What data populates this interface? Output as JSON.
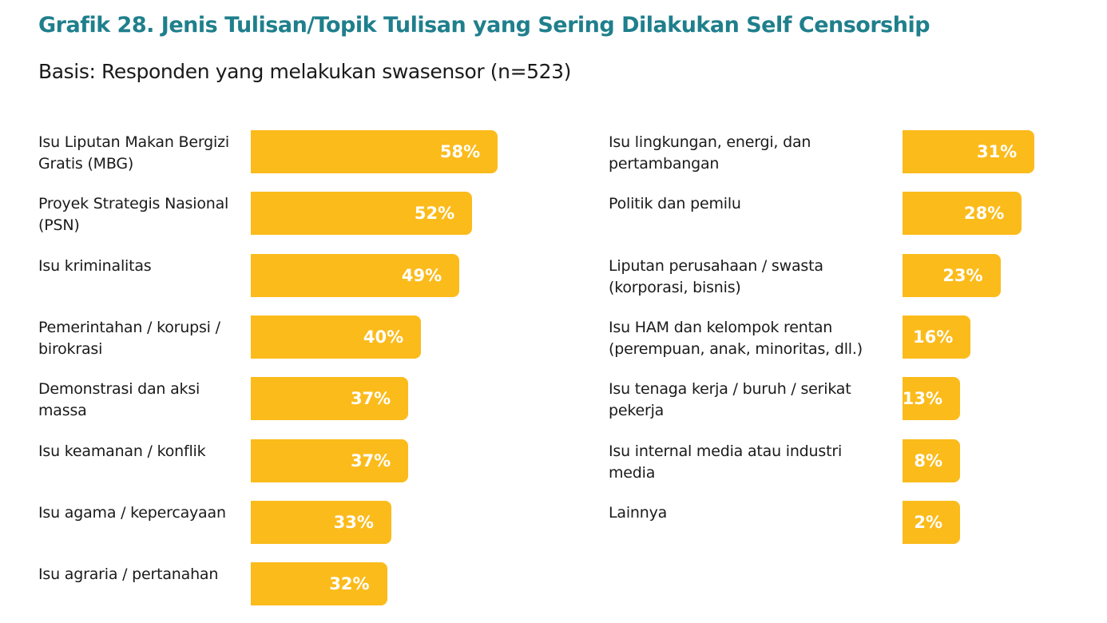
{
  "chart_data": {
    "type": "bar",
    "orientation": "horizontal",
    "title": "Grafik 28.  Jenis Tulisan/Topik Tulisan yang Sering Dilakukan Self Censorship",
    "subtitle": "Basis: Responden yang melakukan swasensor (n=523)",
    "unit": "%",
    "grid": false,
    "colors": {
      "title": "#1f7f8c",
      "bar": "#fbbb1b",
      "value_text": "#ffffff",
      "label_text": "#1a1a1a"
    },
    "columns": [
      {
        "categories": [
          "Isu Liputan Makan Bergizi Gratis (MBG)",
          "Proyek Strategis Nasional (PSN)",
          "Isu kriminalitas",
          "Pemerintahan / korupsi / birokrasi",
          "Demonstrasi dan aksi massa",
          "Isu keamanan / konflik",
          "Isu agama / kepercayaan",
          "Isu agraria / pertanahan"
        ],
        "values": [
          58,
          52,
          49,
          40,
          37,
          37,
          33,
          32
        ],
        "value_labels": [
          "58%",
          "52%",
          "49%",
          "40%",
          "37%",
          "37%",
          "33%",
          "32%"
        ]
      },
      {
        "categories": [
          "Isu lingkungan, energi, dan pertambangan",
          "Politik dan pemilu",
          "Liputan perusahaan / swasta (korporasi, bisnis)",
          "Isu HAM dan kelompok rentan (perempuan, anak, minoritas, dll.)",
          "Isu tenaga kerja / buruh / serikat pekerja",
          "Isu internal media atau industri media",
          "Lainnya"
        ],
        "values": [
          31,
          28,
          23,
          16,
          13,
          8,
          2
        ],
        "value_labels": [
          "31%",
          "28%",
          "23%",
          "16%",
          "13%",
          "8%",
          "2%"
        ]
      }
    ]
  }
}
